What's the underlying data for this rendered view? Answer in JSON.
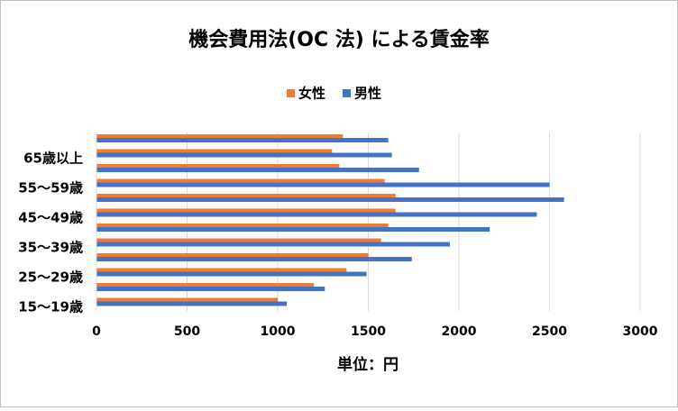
{
  "chart_data": {
    "type": "bar",
    "orientation": "horizontal",
    "title": "機会費用法(OC 法) による賃金率",
    "x_label": "単位：円",
    "categories": [
      "15～19歳",
      null,
      "25～29歳",
      null,
      "35～39歳",
      null,
      "45～49歳",
      null,
      "55～59歳",
      null,
      "65歳以上",
      null
    ],
    "series": [
      {
        "name": "女性",
        "color": "#ED7D31",
        "values": [
          1000,
          1200,
          1380,
          1500,
          1570,
          1610,
          1650,
          1650,
          1590,
          1340,
          1300,
          1360
        ]
      },
      {
        "name": "男性",
        "color": "#4472C4",
        "values": [
          1050,
          1260,
          1490,
          1740,
          1950,
          2170,
          2430,
          2580,
          2500,
          1780,
          1630,
          1610
        ]
      }
    ],
    "xlim": [
      0,
      3000
    ],
    "xticks": [
      0,
      500,
      1000,
      1500,
      2000,
      2500,
      3000
    ],
    "grid": true,
    "legend": "top"
  }
}
